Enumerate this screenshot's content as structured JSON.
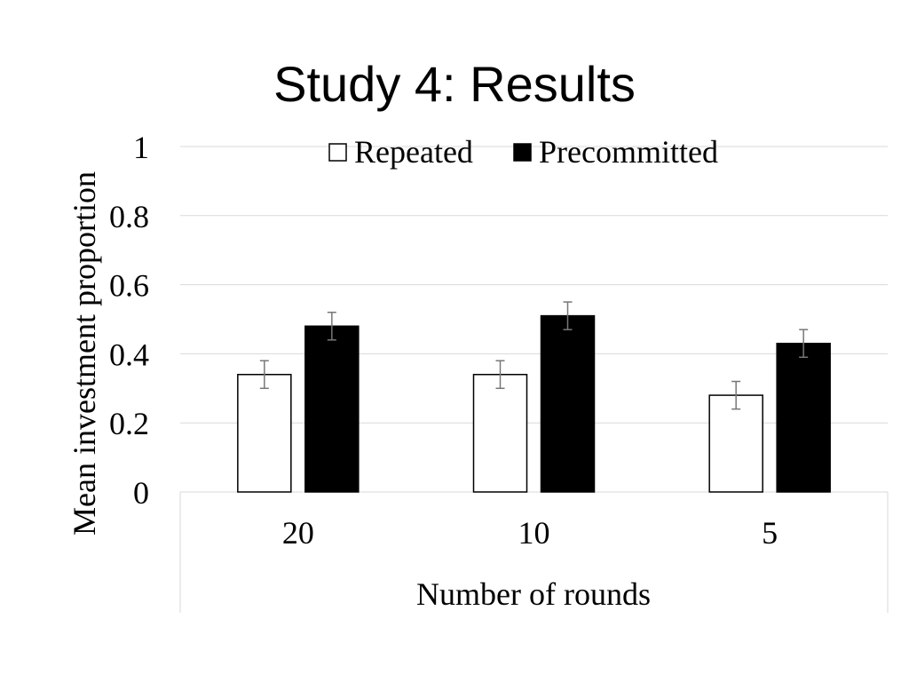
{
  "slide": {
    "title": "Study 4: Results"
  },
  "chart_data": {
    "type": "bar",
    "title": "",
    "xlabel": "Number of rounds",
    "ylabel": "Mean investment proportion",
    "categories": [
      "20",
      "10",
      "5"
    ],
    "ylim": [
      0,
      1
    ],
    "yticks": [
      0,
      0.2,
      0.4,
      0.6,
      0.8,
      1
    ],
    "ytick_labels": [
      "0",
      "0.2",
      "0.4",
      "0.6",
      "0.8",
      "1"
    ],
    "grid": true,
    "legend_position": "top",
    "series": [
      {
        "name": "Repeated",
        "fill": "#ffffff",
        "stroke": "#000000",
        "values": [
          0.34,
          0.34,
          0.28
        ],
        "errors": [
          0.04,
          0.04,
          0.04
        ]
      },
      {
        "name": "Precommitted",
        "fill": "#000000",
        "stroke": "#000000",
        "values": [
          0.48,
          0.51,
          0.43
        ],
        "errors": [
          0.04,
          0.04,
          0.04
        ]
      }
    ]
  }
}
